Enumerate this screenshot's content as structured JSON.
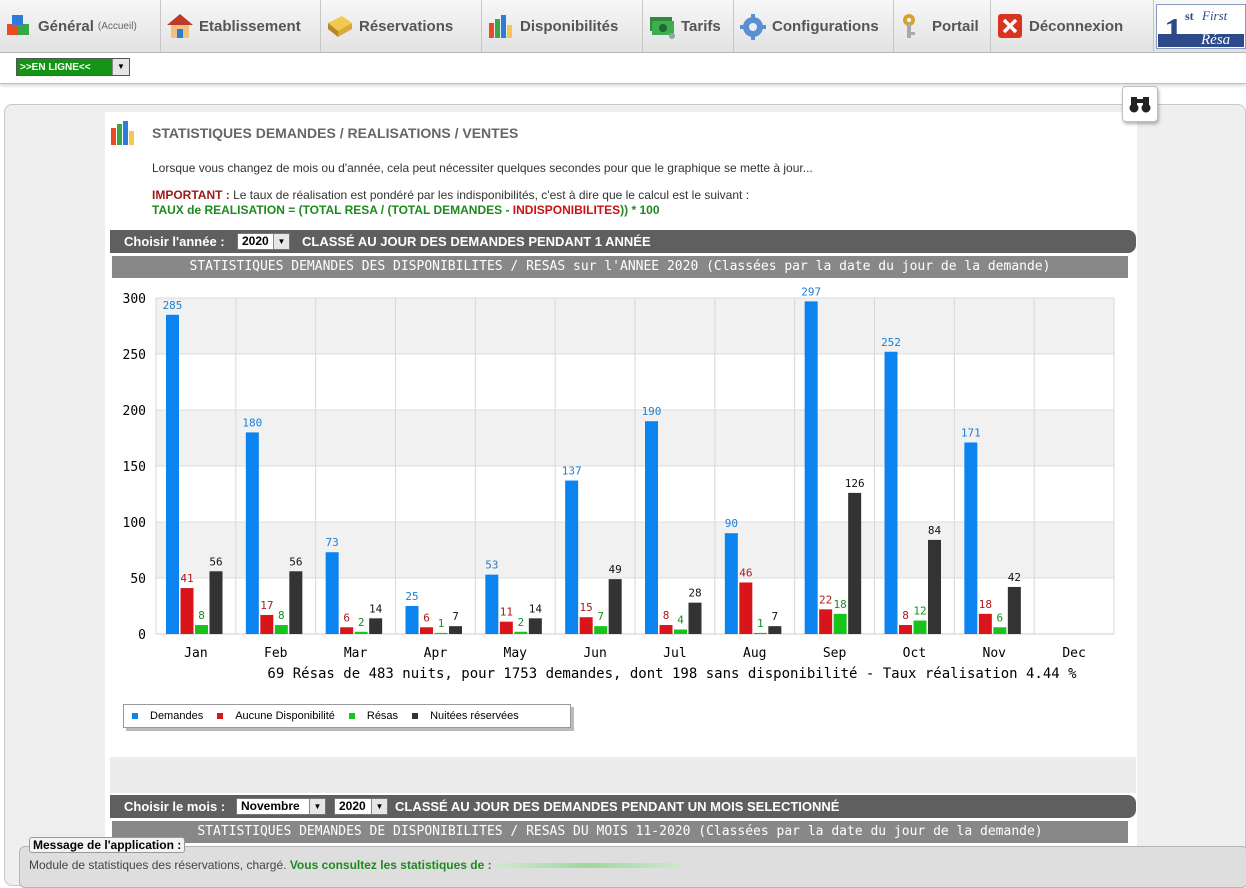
{
  "nav": {
    "items": [
      {
        "label": "Général",
        "sub": "(Accueil)",
        "icon": "cubes-icon"
      },
      {
        "label": "Etablissement",
        "icon": "house-icon"
      },
      {
        "label": "Réservations",
        "icon": "book-icon"
      },
      {
        "label": "Disponibilités",
        "icon": "bar-chart-icon"
      },
      {
        "label": "Tarifs",
        "icon": "money-icon"
      },
      {
        "label": "Configurations",
        "icon": "gear-icon"
      },
      {
        "label": "Portail",
        "icon": "keys-icon"
      },
      {
        "label": "Déconnexion",
        "icon": "close-icon"
      }
    ],
    "logo": {
      "big": "1",
      "sup": "st",
      "word1": "First",
      "word2": "Résa"
    }
  },
  "status_select": {
    "value": ">>EN LIGNE<<"
  },
  "page": {
    "title": "STATISTIQUES DEMANDES / REALISATIONS / VENTES",
    "intro": "Lorsque vous changez de mois ou d'année, cela peut nécessiter quelques secondes pour que le graphique se mette à jour...",
    "important_label": "IMPORTANT :",
    "important_text": " Le taux de réalisation est pondéré par les indisponibilités, c'est à dire que le calcul est le suivant :",
    "formula_a": "TAUX de REALISATION = (TOTAL RESA / (TOTAL DEMANDES - ",
    "formula_b": "INDISPONIBILITES",
    "formula_c": ")) * 100"
  },
  "year_band": {
    "label": "Choisir l'année :",
    "year": "2020",
    "caption": "CLASSÉ AU JOUR DES DEMANDES PENDANT 1 ANNÉE"
  },
  "year_chart_title": "STATISTIQUES DEMANDES DES DISPONIBILITES / RESAS sur l'ANNEE 2020 (Classées par la date du jour de la demande)",
  "chart_data": {
    "type": "bar",
    "categories": [
      "Jan",
      "Feb",
      "Mar",
      "Apr",
      "May",
      "Jun",
      "Jul",
      "Aug",
      "Sep",
      "Oct",
      "Nov",
      "Dec"
    ],
    "series": [
      {
        "name": "Demandes",
        "color": "#0b84f0",
        "labelColor": "#1a7fd6",
        "values": [
          285,
          180,
          73,
          25,
          53,
          137,
          190,
          90,
          297,
          252,
          171,
          null
        ]
      },
      {
        "name": "Aucune Disponibilité",
        "color": "#d9141a",
        "labelColor": "#b01818",
        "values": [
          41,
          17,
          6,
          6,
          11,
          15,
          8,
          46,
          22,
          8,
          18,
          null
        ]
      },
      {
        "name": "Résas",
        "color": "#16c41c",
        "labelColor": "#12911a",
        "values": [
          8,
          8,
          2,
          1,
          2,
          7,
          4,
          1,
          18,
          12,
          6,
          null
        ]
      },
      {
        "name": "Nuitées réservées",
        "color": "#333333",
        "labelColor": "#111111",
        "values": [
          56,
          56,
          14,
          7,
          14,
          49,
          28,
          7,
          126,
          84,
          42,
          null
        ]
      }
    ],
    "yticks": [
      "0",
      "50",
      "100",
      "150",
      "200",
      "250",
      "300"
    ],
    "ylim": [
      0,
      300
    ],
    "summary": "69 Résas de 483 nuits, pour 1753 demandes, dont 198 sans disponibilité - Taux réalisation 4.44 %",
    "legend_position": "bottom-left",
    "grid": true
  },
  "month_band": {
    "label": "Choisir le mois :",
    "month": "Novembre",
    "year": "2020",
    "caption": "CLASSÉ AU JOUR DES DEMANDES PENDANT UN MOIS SELECTIONNÉ"
  },
  "month_chart_title": "STATISTIQUES DEMANDES DE DISPONIBILITES / RESAS DU MOIS 11-2020 (Classées par la date du jour de la demande)",
  "status": {
    "label": "Message de l'application :",
    "text": "Module de statistiques des réservations, chargé. ",
    "green": "Vous consultez les statistiques de :"
  }
}
